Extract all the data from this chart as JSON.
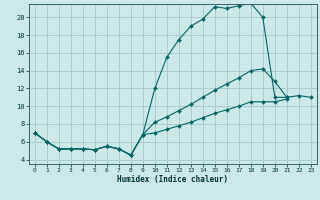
{
  "bg_color": "#cce8e8",
  "grid_color": "#aacccc",
  "line_color": "#006666",
  "marker_color": "#006666",
  "xlabel": "Humidex (Indice chaleur)",
  "xlim": [
    -0.5,
    23.5
  ],
  "ylim": [
    3.5,
    21.5
  ],
  "xticks": [
    0,
    1,
    2,
    3,
    4,
    5,
    6,
    7,
    8,
    9,
    10,
    11,
    12,
    13,
    14,
    15,
    16,
    17,
    18,
    19,
    20,
    21,
    22,
    23
  ],
  "yticks": [
    4,
    6,
    8,
    10,
    12,
    14,
    16,
    18,
    20
  ],
  "line1_x": [
    0,
    1,
    2,
    3,
    4,
    5,
    6,
    7,
    8,
    9,
    10,
    11,
    12,
    13,
    14,
    15,
    16,
    17,
    18,
    19,
    20,
    21
  ],
  "line1_y": [
    7.0,
    6.0,
    5.2,
    5.2,
    5.2,
    5.1,
    5.5,
    5.2,
    4.5,
    6.8,
    12.0,
    15.5,
    17.5,
    19.0,
    19.8,
    21.2,
    21.0,
    21.3,
    21.6,
    20.0,
    11.0,
    11.0
  ],
  "line2_x": [
    0,
    1,
    2,
    3,
    4,
    5,
    6,
    7,
    8,
    9,
    10,
    11,
    12,
    13,
    14,
    15,
    16,
    17,
    18,
    19,
    20,
    21,
    22,
    23
  ],
  "line2_y": [
    7.0,
    6.0,
    5.2,
    5.2,
    5.2,
    5.1,
    5.5,
    5.2,
    4.5,
    6.8,
    8.2,
    8.8,
    9.5,
    10.2,
    11.0,
    11.8,
    12.5,
    13.2,
    14.0,
    14.2,
    12.8,
    11.0,
    11.2,
    11.0
  ],
  "line3_x": [
    0,
    1,
    2,
    3,
    4,
    5,
    6,
    7,
    8,
    9,
    10,
    11,
    12,
    13,
    14,
    15,
    16,
    17,
    18,
    19,
    20,
    21
  ],
  "line3_y": [
    7.0,
    6.0,
    5.2,
    5.2,
    5.2,
    5.1,
    5.5,
    5.2,
    4.5,
    6.8,
    7.0,
    7.4,
    7.8,
    8.2,
    8.7,
    9.2,
    9.6,
    10.0,
    10.5,
    10.5,
    10.5,
    10.8
  ]
}
